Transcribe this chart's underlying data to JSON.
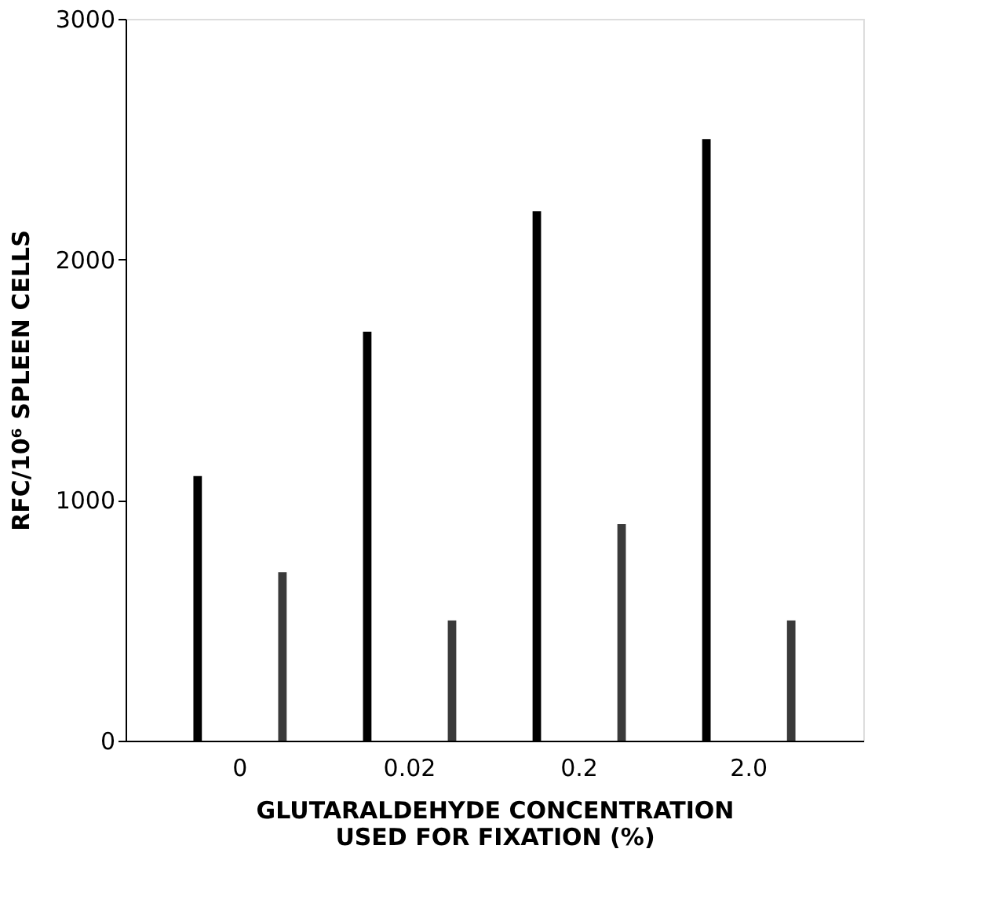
{
  "chart_data": {
    "type": "bar",
    "xlabel": "GLUTARALDEHYDE CONCENTRATION\nUSED FOR FIXATION (%)",
    "ylabel": "RFC/10⁶ SPLEEN CELLS",
    "categories": [
      "0",
      "0.02",
      "0.2",
      "2.0"
    ],
    "series": [
      {
        "color": "#000000",
        "values": [
          1100,
          1700,
          2200,
          2500
        ]
      },
      {
        "color": "#3a3a3a",
        "values": [
          700,
          500,
          900,
          500
        ]
      }
    ],
    "ylim": [
      0,
      3000
    ],
    "yticks": [
      0,
      1000,
      2000,
      3000
    ],
    "grid": false
  }
}
